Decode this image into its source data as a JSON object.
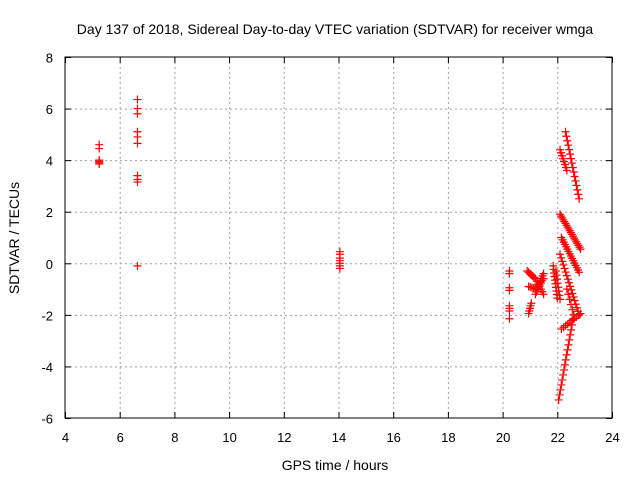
{
  "colors": {
    "marker": "#ff0000",
    "grid": "#a0a0a0",
    "frame": "#000000",
    "background": "#ffffff"
  },
  "chart_data": {
    "type": "scatter",
    "marker": "plus",
    "title": "Day 137 of 2018, Sidereal Day-to-day VTEC variation (SDTVAR) for receiver wmga",
    "xlabel": "GPS time / hours",
    "ylabel": "SDTVAR / TECUs",
    "xlim": [
      4,
      24
    ],
    "ylim": [
      -6,
      8
    ],
    "xticks": [
      4,
      6,
      8,
      10,
      12,
      14,
      16,
      18,
      20,
      22,
      24
    ],
    "yticks": [
      -6,
      -4,
      -2,
      0,
      2,
      4,
      6,
      8
    ],
    "grid": true,
    "series": [
      {
        "name": "SDTVAR",
        "clusters": [
          {
            "x": 5.25,
            "y": [
              4.6,
              4.45,
              4.0,
              3.95,
              3.9,
              3.85
            ]
          },
          {
            "x": 6.65,
            "y": [
              6.35,
              6.0,
              5.8,
              5.1,
              4.9,
              4.65,
              3.4,
              3.25,
              3.15,
              -0.1
            ]
          },
          {
            "x": 14.05,
            "y": [
              0.45,
              0.35,
              0.2,
              0.1,
              0.0,
              -0.1,
              -0.2
            ]
          },
          {
            "x": 20.25,
            "y": [
              -0.3,
              -0.4,
              -0.95,
              -1.05,
              -1.65,
              -1.75,
              -1.85,
              -2.15
            ]
          }
        ],
        "tracks": [
          {
            "x": [
              20.9,
              21.2,
              21.5
            ],
            "y": [
              -0.3,
              -0.6,
              -1.2
            ],
            "n": 14
          },
          {
            "x": [
              20.95,
              21.25,
              21.5
            ],
            "y": [
              -0.9,
              -1.0,
              -0.6
            ],
            "n": 12
          },
          {
            "x": [
              20.95,
              21.05
            ],
            "y": [
              -1.95,
              -1.55
            ],
            "n": 5
          },
          {
            "x": [
              21.2,
              21.5
            ],
            "y": [
              -1.2,
              -0.4
            ],
            "n": 10
          },
          {
            "x": [
              21.85,
              22.0
            ],
            "y": [
              -0.1,
              -1.35
            ],
            "n": 10
          },
          {
            "x": [
              21.95,
              22.1
            ],
            "y": [
              -0.3,
              -1.4
            ],
            "n": 8
          },
          {
            "x": [
              22.1,
              22.35
            ],
            "y": [
              4.4,
              3.6
            ],
            "n": 8
          },
          {
            "x": [
              22.3,
              22.8
            ],
            "y": [
              5.1,
              2.5
            ],
            "n": 16
          },
          {
            "x": [
              22.1,
              22.85
            ],
            "y": [
              1.9,
              0.55
            ],
            "n": 20
          },
          {
            "x": [
              22.15,
              22.8
            ],
            "y": [
              1.0,
              -0.35
            ],
            "n": 16
          },
          {
            "x": [
              22.1,
              22.8
            ],
            "y": [
              0.35,
              -2.0
            ],
            "n": 18
          },
          {
            "x": [
              22.15,
              22.85
            ],
            "y": [
              -2.55,
              -1.95
            ],
            "n": 10
          },
          {
            "x": [
              22.05,
              22.6
            ],
            "y": [
              -5.3,
              -2.0
            ],
            "n": 18
          },
          {
            "x": [
              22.35,
              22.6
            ],
            "y": [
              -1.0,
              -2.0
            ],
            "n": 6
          }
        ]
      }
    ]
  }
}
